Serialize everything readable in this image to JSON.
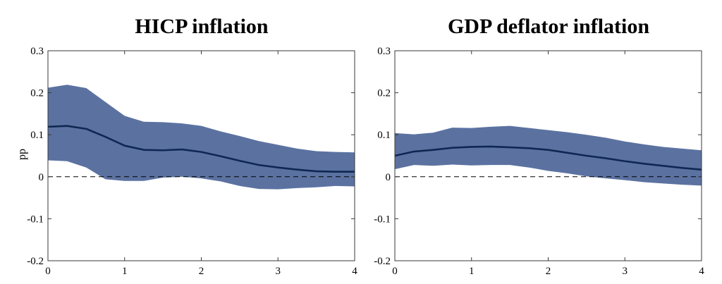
{
  "colors": {
    "band": "#5b72a1",
    "median": "#0f2852",
    "zero_line": "#000000"
  },
  "chart_data": [
    {
      "type": "area",
      "title": "HICP inflation",
      "xlabel": "",
      "ylabel": "pp",
      "xlim": [
        0,
        4
      ],
      "ylim": [
        -0.2,
        0.3
      ],
      "xticks": [
        0,
        1,
        2,
        3,
        4
      ],
      "yticks": [
        -0.2,
        -0.1,
        0,
        0.1,
        0.2,
        0.3
      ],
      "ytick_labels": [
        "-0.2",
        "-0.1",
        "0",
        "0.1",
        "0.2",
        "0.3"
      ],
      "grid": false,
      "x": [
        0,
        0.25,
        0.5,
        0.75,
        1,
        1.25,
        1.5,
        1.75,
        2,
        2.25,
        2.5,
        2.75,
        3,
        3.25,
        3.5,
        3.75,
        4
      ],
      "series": [
        {
          "role": "median",
          "values": [
            0.119,
            0.121,
            0.114,
            0.095,
            0.074,
            0.064,
            0.063,
            0.065,
            0.059,
            0.049,
            0.038,
            0.028,
            0.022,
            0.017,
            0.013,
            0.012,
            0.012
          ]
        },
        {
          "role": "upper",
          "values": [
            0.212,
            0.219,
            0.211,
            0.178,
            0.145,
            0.131,
            0.13,
            0.127,
            0.121,
            0.108,
            0.097,
            0.085,
            0.076,
            0.067,
            0.061,
            0.059,
            0.058
          ]
        },
        {
          "role": "lower",
          "values": [
            0.039,
            0.037,
            0.022,
            -0.006,
            -0.01,
            -0.01,
            -0.002,
            0.0,
            -0.004,
            -0.011,
            -0.022,
            -0.029,
            -0.03,
            -0.027,
            -0.025,
            -0.022,
            -0.023
          ]
        }
      ],
      "reference_line": {
        "y": 0,
        "style": "dashed"
      }
    },
    {
      "type": "area",
      "title": "GDP deflator inflation",
      "xlabel": "",
      "ylabel": "",
      "xlim": [
        0,
        4
      ],
      "ylim": [
        -0.2,
        0.3
      ],
      "xticks": [
        0,
        1,
        2,
        3,
        4
      ],
      "yticks": [
        -0.2,
        -0.1,
        0,
        0.1,
        0.2,
        0.3
      ],
      "ytick_labels": [
        "-0.2",
        "-0.1",
        "0",
        "0.1",
        "0.2",
        "0.3"
      ],
      "grid": false,
      "x": [
        0,
        0.25,
        0.5,
        0.75,
        1,
        1.25,
        1.5,
        1.75,
        2,
        2.25,
        2.5,
        2.75,
        3,
        3.25,
        3.5,
        3.75,
        4
      ],
      "series": [
        {
          "role": "median",
          "values": [
            0.05,
            0.06,
            0.064,
            0.069,
            0.071,
            0.072,
            0.07,
            0.068,
            0.064,
            0.057,
            0.05,
            0.044,
            0.037,
            0.031,
            0.026,
            0.021,
            0.017
          ]
        },
        {
          "role": "upper",
          "values": [
            0.104,
            0.101,
            0.105,
            0.117,
            0.116,
            0.119,
            0.121,
            0.116,
            0.111,
            0.106,
            0.1,
            0.093,
            0.084,
            0.077,
            0.071,
            0.067,
            0.063
          ]
        },
        {
          "role": "lower",
          "values": [
            0.018,
            0.028,
            0.026,
            0.029,
            0.027,
            0.028,
            0.028,
            0.022,
            0.014,
            0.008,
            0.001,
            -0.004,
            -0.008,
            -0.013,
            -0.016,
            -0.019,
            -0.021
          ]
        }
      ],
      "reference_line": {
        "y": 0,
        "style": "dashed"
      }
    }
  ]
}
